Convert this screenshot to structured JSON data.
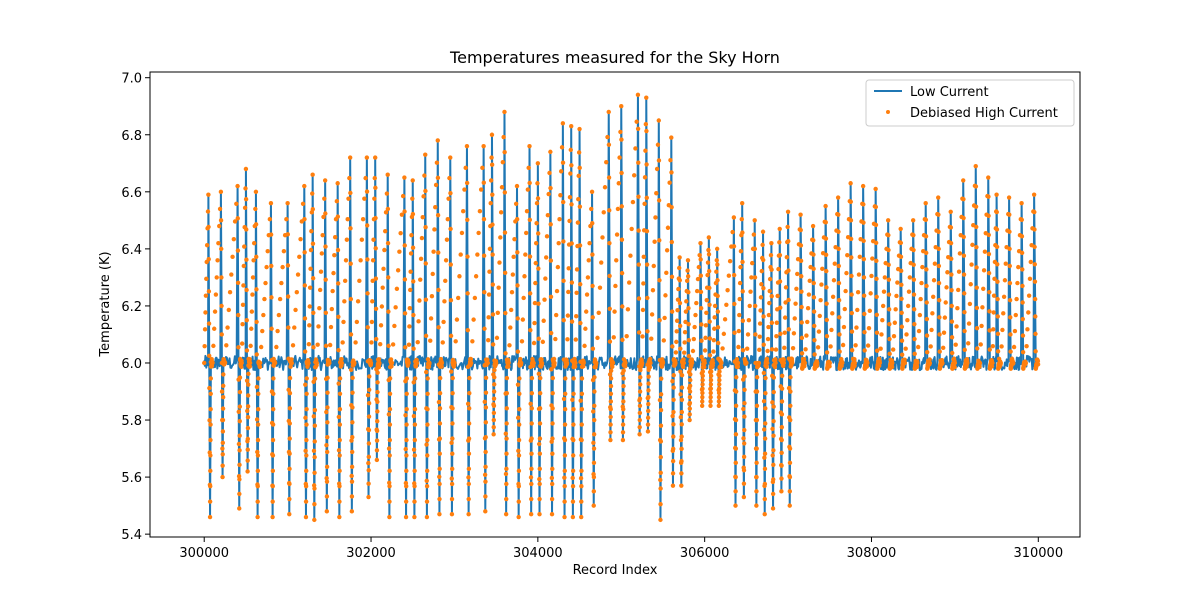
{
  "chart_data": {
    "type": "line",
    "title": "Temperatures measured for the Sky Horn",
    "xlabel": "Record Index",
    "ylabel": "Temperature (K)",
    "xlim": [
      299350,
      310500
    ],
    "ylim": [
      5.39,
      7.02
    ],
    "xticks": [
      300000,
      302000,
      304000,
      306000,
      308000,
      310000
    ],
    "xtick_labels": [
      "300000",
      "302000",
      "304000",
      "306000",
      "308000",
      "310000"
    ],
    "yticks": [
      5.4,
      5.6,
      5.8,
      6.0,
      6.2,
      6.4,
      6.6,
      6.8,
      7.0
    ],
    "ytick_labels": [
      "5.4",
      "5.6",
      "5.8",
      "6.0",
      "6.2",
      "6.4",
      "6.6",
      "6.8",
      "7.0"
    ],
    "grid": false,
    "legend_position": "top-right",
    "baseline": 6.0,
    "series": [
      {
        "name": "Low Current",
        "kind": "line",
        "color": "#1f77b4",
        "x": [
          300000,
          300050,
          300070,
          300080,
          300100,
          300200,
          300220,
          300230,
          300250,
          300400,
          300420,
          300430,
          300450,
          300500,
          300520,
          300530,
          300550,
          300620,
          300640,
          300650,
          300670,
          300800,
          300820,
          300830,
          300850,
          301000,
          301020,
          301030,
          301050,
          301200,
          301220,
          301230,
          301250,
          301300,
          301320,
          301330,
          301350,
          301450,
          301470,
          301480,
          301500,
          301600,
          301620,
          301630,
          301650,
          301750,
          301770,
          301780,
          301800,
          301950,
          301970,
          301980,
          302000,
          302050,
          302070,
          302080,
          302100,
          302200,
          302220,
          302230,
          302250,
          302400,
          302420,
          302430,
          302450,
          302500,
          302520,
          302530,
          302550,
          302650,
          302670,
          302680,
          302700,
          302800,
          302820,
          302830,
          302850,
          302950,
          302970,
          302980,
          303000,
          303150,
          303170,
          303180,
          303200,
          303350,
          303370,
          303380,
          303400,
          303450,
          303470,
          303480,
          303500,
          303600,
          303620,
          303630,
          303650,
          303750,
          303770,
          303780,
          303800,
          303900,
          303920,
          303930,
          303950,
          304000,
          304020,
          304030,
          304050,
          304150,
          304170,
          304180,
          304200,
          304300,
          304320,
          304330,
          304350,
          304400,
          304420,
          304430,
          304450,
          304500,
          304520,
          304530,
          304550,
          304650,
          304670,
          304680,
          304700,
          304850,
          304870,
          304880,
          304900,
          305000,
          305020,
          305030,
          305050,
          305200,
          305220,
          305230,
          305250,
          305300,
          305320,
          305330,
          305350,
          305450,
          305470,
          305480,
          305500,
          305600,
          305620,
          305630,
          305650,
          305700,
          305720,
          305730,
          305750,
          305800,
          305820,
          305830,
          305850,
          305950,
          305970,
          305980,
          306000,
          306050,
          306070,
          306080,
          306100,
          306150,
          306170,
          306180,
          306200,
          306350,
          306370,
          306380,
          306400,
          306450,
          306470,
          306480,
          306500,
          306600,
          306620,
          306630,
          306650,
          306700,
          306720,
          306730,
          306750,
          306800,
          306820,
          306830,
          306850,
          306900,
          306920,
          306930,
          306950,
          307000,
          307020,
          307030,
          307050,
          307150,
          307170,
          307180,
          307200,
          307300,
          307320,
          307330,
          307350,
          307450,
          307470,
          307480,
          307500,
          307600,
          307620,
          307630,
          307650,
          307750,
          307770,
          307780,
          307800,
          307900,
          307920,
          307930,
          307950,
          308050,
          308070,
          308080,
          308100,
          308200,
          308220,
          308230,
          308250,
          308350,
          308370,
          308380,
          308400,
          308500,
          308520,
          308530,
          308550,
          308650,
          308670,
          308680,
          308700,
          308800,
          308820,
          308830,
          308850,
          308950,
          308970,
          308980,
          309000,
          309100,
          309120,
          309130,
          309150,
          309250,
          309270,
          309280,
          309300,
          309400,
          309420,
          309430,
          309450,
          309500,
          309520,
          309530,
          309550,
          309650,
          309670,
          309680,
          309700,
          309800,
          309820,
          309830,
          309850,
          309950,
          309970,
          309980,
          310000
        ],
        "y": [
          6.0,
          6.59,
          5.46,
          6.0,
          6.0,
          6.6,
          5.6,
          6.0,
          6.0,
          6.62,
          5.49,
          6.0,
          6.0,
          6.68,
          5.62,
          6.0,
          6.0,
          6.6,
          5.46,
          6.0,
          6.0,
          6.56,
          5.46,
          6.0,
          6.0,
          6.56,
          5.47,
          6.0,
          6.0,
          6.62,
          5.46,
          6.0,
          6.0,
          6.66,
          5.45,
          6.0,
          6.0,
          6.64,
          5.48,
          6.0,
          6.0,
          6.63,
          5.46,
          6.0,
          6.0,
          6.72,
          5.48,
          6.0,
          6.0,
          6.72,
          5.53,
          6.0,
          6.0,
          6.72,
          5.66,
          6.0,
          6.0,
          6.66,
          5.46,
          6.0,
          6.0,
          6.65,
          5.46,
          6.0,
          6.0,
          6.64,
          5.46,
          6.0,
          6.0,
          6.73,
          5.46,
          6.0,
          6.0,
          6.78,
          5.47,
          6.0,
          6.0,
          6.72,
          5.47,
          6.0,
          6.0,
          6.76,
          5.47,
          6.0,
          6.0,
          6.76,
          5.48,
          6.0,
          6.0,
          6.8,
          5.75,
          6.0,
          6.0,
          6.88,
          5.47,
          6.0,
          6.0,
          6.62,
          5.46,
          6.0,
          6.0,
          6.76,
          5.47,
          6.0,
          6.0,
          6.7,
          5.47,
          6.0,
          6.0,
          6.74,
          5.47,
          6.0,
          6.0,
          6.84,
          5.46,
          6.0,
          6.0,
          6.83,
          5.46,
          6.0,
          6.0,
          6.82,
          5.46,
          6.0,
          6.0,
          6.6,
          5.5,
          6.0,
          6.0,
          6.88,
          5.73,
          6.0,
          6.0,
          6.9,
          5.73,
          6.0,
          6.0,
          6.94,
          5.75,
          6.0,
          6.0,
          6.93,
          5.76,
          6.0,
          6.0,
          6.85,
          5.45,
          6.0,
          6.0,
          6.79,
          5.57,
          6.0,
          6.0,
          6.37,
          5.57,
          6.0,
          6.0,
          6.36,
          5.8,
          6.0,
          6.0,
          6.42,
          5.85,
          6.0,
          6.0,
          6.44,
          5.85,
          6.0,
          6.0,
          6.4,
          5.85,
          6.0,
          6.0,
          6.51,
          5.5,
          6.0,
          6.0,
          6.56,
          5.53,
          6.0,
          6.0,
          6.5,
          5.5,
          6.0,
          6.0,
          6.46,
          5.47,
          6.0,
          6.0,
          6.42,
          5.49,
          6.0,
          6.0,
          6.47,
          5.55,
          6.0,
          6.0,
          6.53,
          5.5,
          6.0,
          6.0,
          6.52,
          5.98,
          6.0,
          6.0,
          6.48,
          5.98,
          6.0,
          6.0,
          6.55,
          5.98,
          6.0,
          6.0,
          6.58,
          5.98,
          6.0,
          6.0,
          6.63,
          5.98,
          6.0,
          6.0,
          6.62,
          5.98,
          6.0,
          6.0,
          6.61,
          5.98,
          6.0,
          6.0,
          6.5,
          5.98,
          6.0,
          6.0,
          6.47,
          5.98,
          6.0,
          6.0,
          6.5,
          5.98,
          6.0,
          6.0,
          6.56,
          5.98,
          6.0,
          6.0,
          6.58,
          5.98,
          6.0,
          6.0,
          6.53,
          5.98,
          6.0,
          6.0,
          6.64,
          5.98,
          6.0,
          6.0,
          6.69,
          5.98,
          6.0,
          6.0,
          6.65,
          5.98,
          6.0,
          6.0,
          6.59,
          5.98,
          6.0,
          6.0,
          6.58,
          5.98,
          6.0,
          6.0,
          6.56,
          5.98,
          6.0,
          6.0,
          6.59,
          5.98,
          6.0,
          6.0
        ]
      },
      {
        "name": "Debiased High Current",
        "kind": "scatter",
        "color": "#ff7f0e",
        "points_per_segment": 10
      }
    ]
  }
}
